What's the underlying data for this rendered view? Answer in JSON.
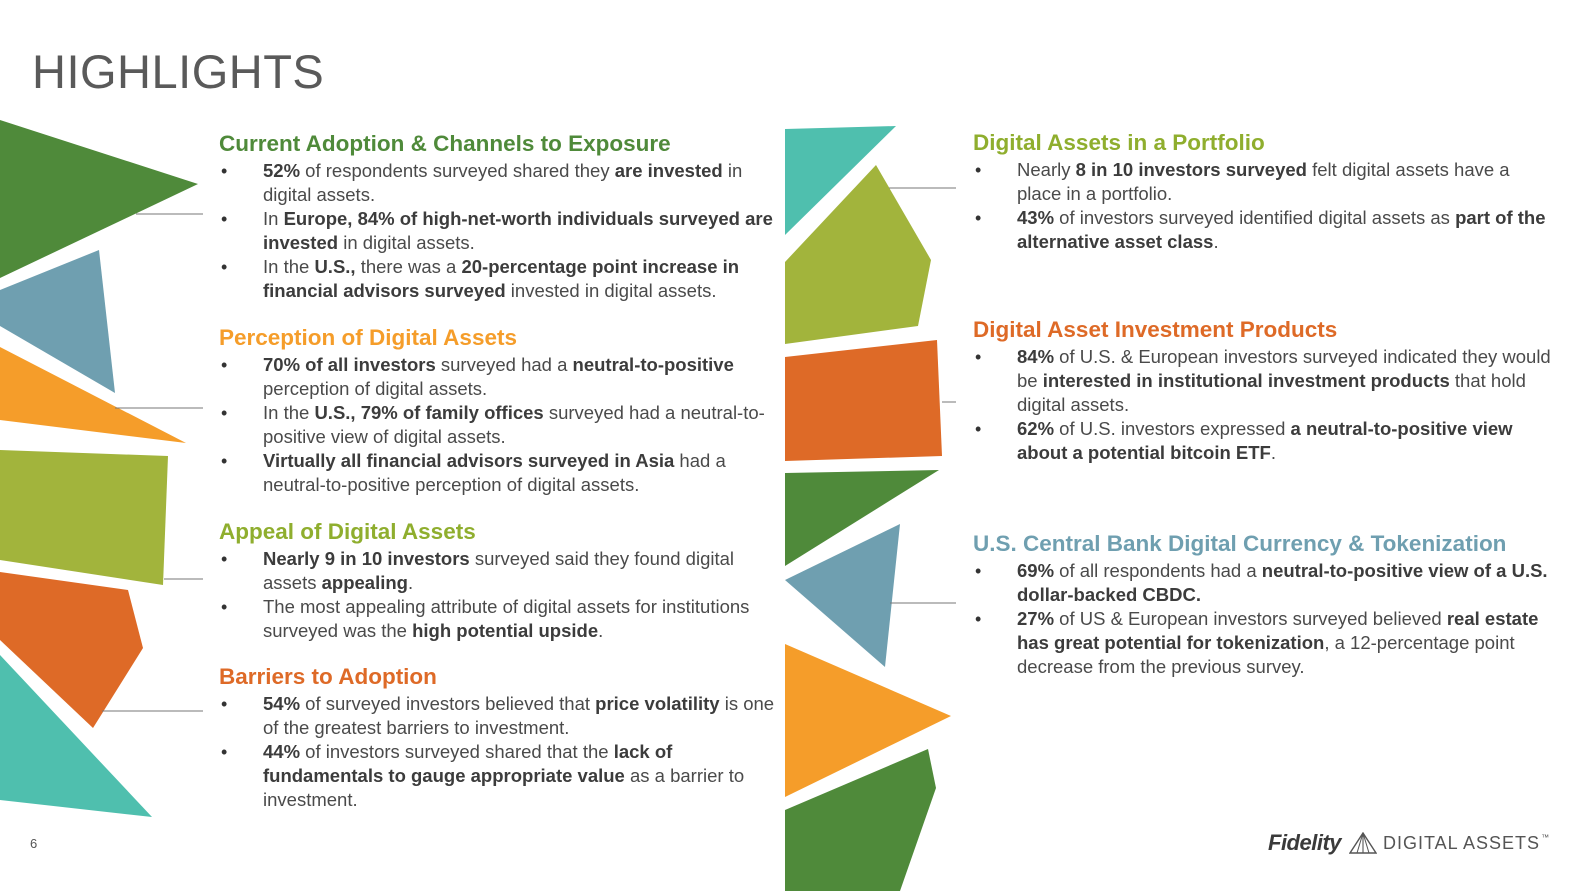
{
  "page": {
    "title": "HIGHLIGHTS",
    "page_number": "6"
  },
  "logo": {
    "brand": "Fidelity",
    "sub": "DIGITAL ASSETS",
    "tm": "™"
  },
  "colors": {
    "green": "#4f8a3a",
    "lime": "#a2b43c",
    "orange": "#f59d2a",
    "rust": "#de6a27",
    "teal": "#4fbfae",
    "slate": "#6f9fb0"
  },
  "sections": [
    {
      "heading": "Current Adoption & Channels to Exposure",
      "color": "#4f8a3a",
      "items": [
        {
          "runs": [
            {
              "t": "52%",
              "b": true
            },
            {
              "t": " of respondents surveyed shared they "
            },
            {
              "t": "are invested",
              "b": true
            },
            {
              "t": " in digital assets."
            }
          ]
        },
        {
          "runs": [
            {
              "t": "In "
            },
            {
              "t": "Europe, 84% of high-net-worth individuals surveyed are invested",
              "b": true
            },
            {
              "t": " in digital assets."
            }
          ]
        },
        {
          "runs": [
            {
              "t": "In the "
            },
            {
              "t": "U.S.,",
              "b": true
            },
            {
              "t": " there was a "
            },
            {
              "t": "20-percentage point increase in financial advisors surveyed",
              "b": true
            },
            {
              "t": " invested in digital assets."
            }
          ]
        }
      ]
    },
    {
      "heading": "Perception of Digital Assets",
      "color": "#f59d2a",
      "items": [
        {
          "runs": [
            {
              "t": "70% of all investors",
              "b": true
            },
            {
              "t": " surveyed had a "
            },
            {
              "t": "neutral-to-positive",
              "b": true
            },
            {
              "t": " perception of digital assets."
            }
          ]
        },
        {
          "runs": [
            {
              "t": "In the "
            },
            {
              "t": "U.S., 79% of family offices",
              "b": true
            },
            {
              "t": " surveyed had a neutral-to-positive view of digital assets."
            }
          ]
        },
        {
          "runs": [
            {
              "t": "Virtually all financial advisors surveyed in Asia",
              "b": true
            },
            {
              "t": " had a neutral-to-positive perception of digital assets."
            }
          ]
        }
      ]
    },
    {
      "heading": "Appeal of Digital Assets",
      "color": "#8fae2e",
      "items": [
        {
          "runs": [
            {
              "t": "Nearly 9 in 10 investors",
              "b": true
            },
            {
              "t": " surveyed said they found digital assets "
            },
            {
              "t": "appealing",
              "b": true
            },
            {
              "t": "."
            }
          ]
        },
        {
          "runs": [
            {
              "t": "The most appealing attribute of digital assets for institutions surveyed was the "
            },
            {
              "t": "high potential upside",
              "b": true
            },
            {
              "t": "."
            }
          ]
        }
      ]
    },
    {
      "heading": "Barriers to Adoption",
      "color": "#de6a27",
      "items": [
        {
          "runs": [
            {
              "t": "54%",
              "b": true
            },
            {
              "t": " of surveyed investors believed that "
            },
            {
              "t": "price volatility",
              "b": true
            },
            {
              "t": " is one of the greatest barriers to investment."
            }
          ]
        },
        {
          "runs": [
            {
              "t": "44%",
              "b": true
            },
            {
              "t": " of investors surveyed shared that the "
            },
            {
              "t": "lack of fundamentals to gauge appropriate value",
              "b": true
            },
            {
              "t": " as a barrier to investment."
            }
          ]
        }
      ]
    },
    {
      "heading": "Digital Assets in a Portfolio",
      "color": "#8fae2e",
      "items": [
        {
          "runs": [
            {
              "t": "Nearly "
            },
            {
              "t": "8 in 10 investors surveyed",
              "b": true
            },
            {
              "t": " felt digital assets have a place in a portfolio."
            }
          ]
        },
        {
          "runs": [
            {
              "t": "43%",
              "b": true
            },
            {
              "t": " of investors surveyed identified digital assets as "
            },
            {
              "t": "part of the alternative asset class",
              "b": true
            },
            {
              "t": "."
            }
          ]
        }
      ]
    },
    {
      "heading": "Digital Asset Investment Products",
      "color": "#de6a27",
      "items": [
        {
          "runs": [
            {
              "t": "84%",
              "b": true
            },
            {
              "t": " of U.S. & European investors surveyed indicated they would be "
            },
            {
              "t": "interested in institutional investment products",
              "b": true
            },
            {
              "t": " that hold digital assets."
            }
          ]
        },
        {
          "runs": [
            {
              "t": "62%",
              "b": true
            },
            {
              "t": " of U.S. investors expressed "
            },
            {
              "t": "a neutral-to-positive view about a potential bitcoin ETF",
              "b": true
            },
            {
              "t": "."
            }
          ]
        }
      ]
    },
    {
      "heading": "U.S. Central Bank Digital Currency & Tokenization",
      "color": "#6f9fb0",
      "items": [
        {
          "runs": [
            {
              "t": "69%",
              "b": true
            },
            {
              "t": " of all respondents had a "
            },
            {
              "t": "neutral-to-positive view of a U.S. dollar-backed CBDC.",
              "b": true
            }
          ]
        },
        {
          "runs": [
            {
              "t": "27%",
              "b": true
            },
            {
              "t": " of US & European investors surveyed believed "
            },
            {
              "t": "real estate has great potential for tokenization",
              "b": true
            },
            {
              "t": ", a 12-percentage point decrease from the previous survey."
            }
          ]
        }
      ]
    }
  ]
}
